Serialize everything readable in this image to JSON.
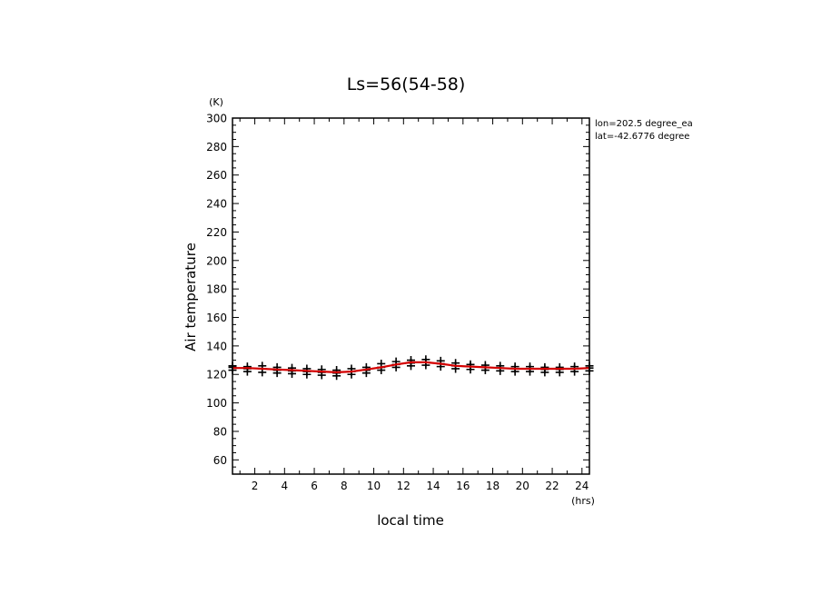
{
  "chart_data": {
    "type": "line",
    "title": "Ls=56(54-58)",
    "xlabel": "local time",
    "ylabel": "Air temperature",
    "x_unit": "(hrs)",
    "y_unit": "(K)",
    "xlim": [
      0.5,
      24.5
    ],
    "ylim": [
      50,
      300
    ],
    "x_ticks": [
      2,
      4,
      6,
      8,
      10,
      12,
      14,
      16,
      18,
      20,
      22,
      24
    ],
    "y_ticks": [
      60,
      80,
      100,
      120,
      140,
      160,
      180,
      200,
      220,
      240,
      260,
      280,
      300
    ],
    "annotations": [
      "lon=202.5 degree_ea",
      "lat=-42.6776 degree"
    ],
    "series": [
      {
        "color": "#d40000",
        "x": [
          0.5,
          1.5,
          2.5,
          3.5,
          4.5,
          5.5,
          6.5,
          7.5,
          8.5,
          9.5,
          10.5,
          11.5,
          12.5,
          13.5,
          14.5,
          15.5,
          16.5,
          17.5,
          18.5,
          19.5,
          20.5,
          21.5,
          22.5,
          23.5,
          24.5
        ],
        "values": [
          124.5,
          124.5,
          124,
          123.5,
          123,
          122.5,
          122,
          121.5,
          122,
          123.5,
          125,
          127,
          128.5,
          128.5,
          127.5,
          126,
          125.5,
          125,
          124.5,
          124,
          124,
          124,
          124,
          124,
          124.5
        ]
      }
    ],
    "markers": [
      {
        "x": 0.5,
        "y": [
          123,
          125,
          126
        ]
      },
      {
        "x": 1.5,
        "y": [
          122,
          124,
          125.5
        ]
      },
      {
        "x": 2.5,
        "y": [
          121.5,
          124,
          126
        ]
      },
      {
        "x": 3.5,
        "y": [
          121,
          123,
          125
        ]
      },
      {
        "x": 4.5,
        "y": [
          120.5,
          122.5,
          124.5
        ]
      },
      {
        "x": 5.5,
        "y": [
          120,
          122,
          124
        ]
      },
      {
        "x": 6.5,
        "y": [
          119.5,
          121.5,
          123.5
        ]
      },
      {
        "x": 7.5,
        "y": [
          119,
          121,
          123
        ]
      },
      {
        "x": 8.5,
        "y": [
          120,
          122,
          124
        ]
      },
      {
        "x": 9.5,
        "y": [
          121,
          123,
          125
        ]
      },
      {
        "x": 10.5,
        "y": [
          123,
          125,
          127.5
        ]
      },
      {
        "x": 11.5,
        "y": [
          125,
          127,
          129
        ]
      },
      {
        "x": 12.5,
        "y": [
          126,
          128,
          130
        ]
      },
      {
        "x": 13.5,
        "y": [
          126.5,
          128.5,
          130.5
        ]
      },
      {
        "x": 14.5,
        "y": [
          125.5,
          127.5,
          129.5
        ]
      },
      {
        "x": 15.5,
        "y": [
          124,
          126,
          128
        ]
      },
      {
        "x": 16.5,
        "y": [
          123.5,
          125.5,
          127
        ]
      },
      {
        "x": 17.5,
        "y": [
          123,
          125,
          126.5
        ]
      },
      {
        "x": 18.5,
        "y": [
          122.5,
          124.5,
          126
        ]
      },
      {
        "x": 19.5,
        "y": [
          122,
          124,
          125.5
        ]
      },
      {
        "x": 20.5,
        "y": [
          122,
          124,
          125.5
        ]
      },
      {
        "x": 21.5,
        "y": [
          121.5,
          123.5,
          125
        ]
      },
      {
        "x": 22.5,
        "y": [
          121.5,
          123.5,
          125
        ]
      },
      {
        "x": 23.5,
        "y": [
          122,
          124,
          125.5
        ]
      },
      {
        "x": 24.5,
        "y": [
          122.5,
          124.5,
          126
        ]
      }
    ],
    "grid": false,
    "legend": "none"
  }
}
